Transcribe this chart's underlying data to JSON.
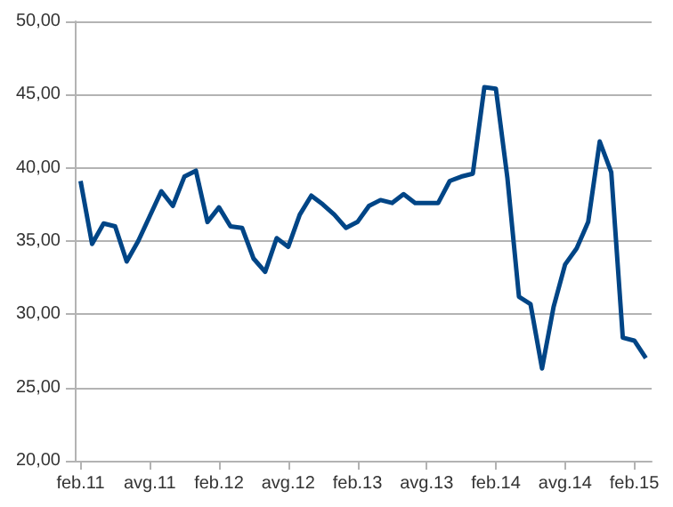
{
  "chart_data": {
    "type": "line",
    "categories": [
      "feb.11",
      null,
      null,
      null,
      null,
      null,
      "avg.11",
      null,
      null,
      null,
      null,
      null,
      "feb.12",
      null,
      null,
      null,
      null,
      null,
      "avg.12",
      null,
      null,
      null,
      null,
      null,
      "feb.13",
      null,
      null,
      null,
      null,
      null,
      "avg.13",
      null,
      null,
      null,
      null,
      null,
      "feb.14",
      null,
      null,
      null,
      null,
      null,
      "avg.14",
      null,
      null,
      null,
      null,
      null,
      "feb.15",
      null
    ],
    "series": [
      {
        "color": "#004586",
        "values": [
          39.1,
          34.8,
          36.2,
          36.0,
          33.6,
          35.0,
          36.7,
          38.4,
          37.4,
          39.4,
          39.8,
          36.3,
          37.3,
          36.0,
          35.9,
          33.8,
          32.9,
          35.2,
          34.6,
          36.8,
          38.1,
          37.5,
          36.8,
          35.9,
          36.3,
          37.4,
          37.8,
          37.6,
          38.2,
          37.6,
          37.6,
          37.6,
          39.1,
          39.4,
          39.6,
          45.5,
          45.4,
          39.3,
          31.2,
          30.7,
          26.3,
          30.5,
          33.4,
          34.5,
          36.3,
          41.8,
          39.7,
          28.4,
          28.2,
          27.0
        ]
      }
    ],
    "ylim": [
      20,
      50
    ],
    "yticks": [
      {
        "value": 20,
        "label": "20,00"
      },
      {
        "value": 25,
        "label": "25,00"
      },
      {
        "value": 30,
        "label": "30,00"
      },
      {
        "value": 35,
        "label": "35,00"
      },
      {
        "value": 40,
        "label": "40,00"
      },
      {
        "value": 45,
        "label": "45,00"
      },
      {
        "value": 50,
        "label": "50,00"
      }
    ],
    "grid": "y",
    "marker": "none",
    "line_style": "solid"
  }
}
